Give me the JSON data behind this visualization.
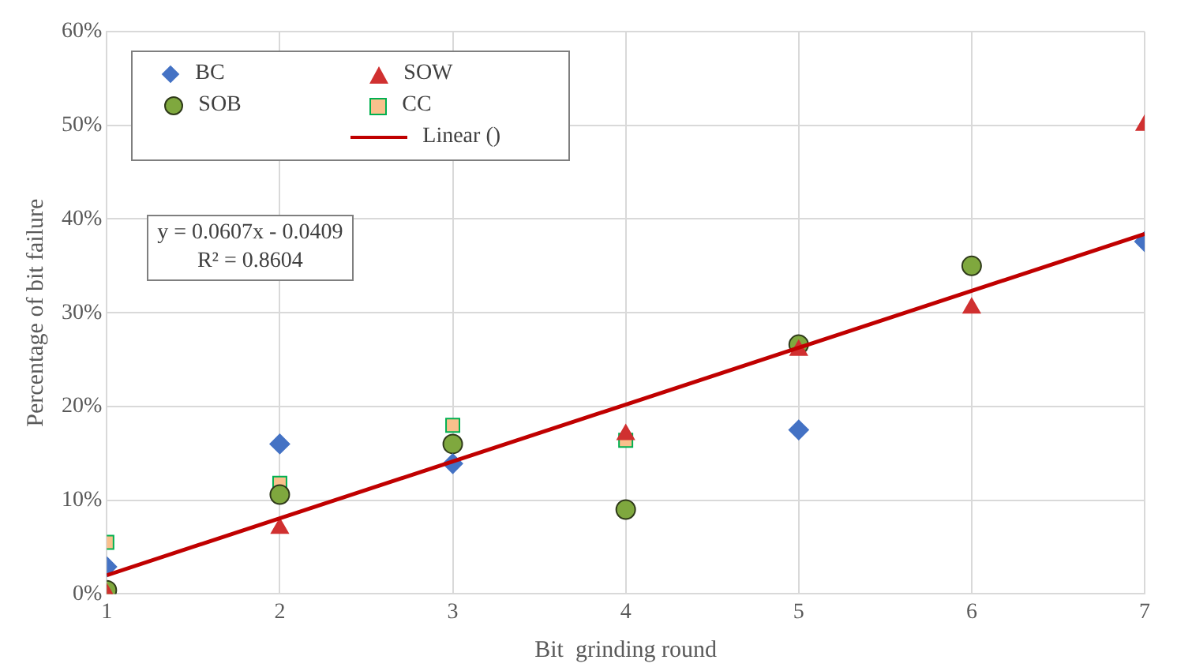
{
  "chart_data": {
    "type": "scatter",
    "xlabel": "Bit  grinding round",
    "ylabel": "Percentage of bit failure",
    "xlim": [
      1,
      7
    ],
    "xticks": [
      1,
      2,
      3,
      4,
      5,
      6,
      7
    ],
    "ylim": [
      0,
      60
    ],
    "yticks": [
      {
        "value": 0,
        "label": "0%"
      },
      {
        "value": 10,
        "label": "10%"
      },
      {
        "value": 20,
        "label": "20%"
      },
      {
        "value": 30,
        "label": "30%"
      },
      {
        "value": 40,
        "label": "40%"
      },
      {
        "value": 50,
        "label": "50%"
      },
      {
        "value": 60,
        "label": "60%"
      }
    ],
    "grid": true,
    "legend": "top left",
    "annotations": [
      "y = 0.0607x - 0.0409\nR² = 0.8604"
    ],
    "series": [
      {
        "name": "BC",
        "color": "#4472c4",
        "marker": "diamond",
        "x": [
          1,
          2,
          3,
          5,
          7
        ],
        "values": [
          2.9,
          16,
          13.9,
          17.5,
          37.6
        ]
      },
      {
        "name": "SOW",
        "color": "#d03030",
        "marker": "triangle",
        "x": [
          1,
          2,
          3,
          4,
          5,
          6,
          7
        ],
        "values": [
          0,
          7,
          null,
          17,
          26,
          30.5,
          50
        ]
      },
      {
        "name": "SOB",
        "color": "#7fa83e",
        "marker": "circle",
        "x": [
          1,
          2,
          3,
          4,
          5,
          6
        ],
        "values": [
          0.4,
          10.6,
          16,
          9,
          26.6,
          35
        ]
      },
      {
        "name": "CC",
        "color": "#f9c08c",
        "marker": "square",
        "x": [
          1,
          2,
          3,
          4
        ],
        "values": [
          5.5,
          11.8,
          18,
          16.4
        ]
      },
      {
        "name": "Linear ()",
        "type": "line",
        "color": "#c00000",
        "marker": "none",
        "line_style": "solid",
        "x": [
          1,
          7
        ],
        "values": [
          2,
          38.4
        ]
      }
    ]
  }
}
